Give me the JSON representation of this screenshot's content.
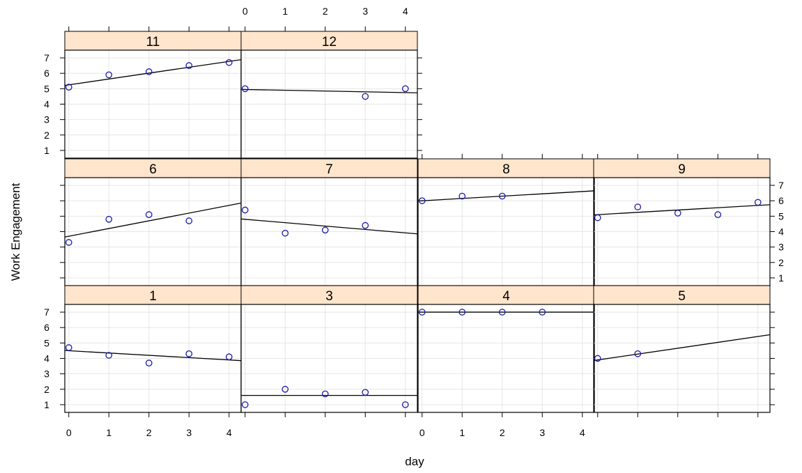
{
  "chart_data": {
    "type": "scatter",
    "xlabel": "day",
    "ylabel": "Work Engagement",
    "xlim": [
      -0.1,
      4.3
    ],
    "ylim": [
      0.5,
      7.5
    ],
    "x_ticks": [
      0,
      1,
      2,
      3,
      4
    ],
    "y_ticks": [
      1,
      2,
      3,
      4,
      5,
      6,
      7
    ],
    "grid": true,
    "strip_color": "#ffe5cc",
    "point_color": "#1a1aa8",
    "line_color": "#000000",
    "grid_color": "#e6e6e6",
    "panels": [
      {
        "label": "11",
        "row": 0,
        "col": 0,
        "points": [
          [
            0,
            5.1
          ],
          [
            1,
            5.9
          ],
          [
            2,
            6.1
          ],
          [
            3,
            6.5
          ],
          [
            4,
            6.7
          ]
        ],
        "fit": [
          5.25,
          0.38
        ]
      },
      {
        "label": "12",
        "row": 0,
        "col": 1,
        "points": [
          [
            0,
            5.0
          ],
          [
            3,
            4.5
          ],
          [
            4,
            5.0
          ]
        ],
        "fit": [
          4.95,
          -0.05
        ]
      },
      {
        "label": "6",
        "row": 1,
        "col": 0,
        "points": [
          [
            0,
            3.3
          ],
          [
            1,
            4.8
          ],
          [
            2,
            5.1
          ],
          [
            3,
            4.7
          ]
        ],
        "fit": [
          3.7,
          0.5
        ]
      },
      {
        "label": "7",
        "row": 1,
        "col": 1,
        "points": [
          [
            0,
            5.4
          ],
          [
            1,
            3.9
          ],
          [
            2,
            4.1
          ],
          [
            3,
            4.4
          ]
        ],
        "fit": [
          4.8,
          -0.22
        ]
      },
      {
        "label": "8",
        "row": 1,
        "col": 2,
        "points": [
          [
            0,
            6.0
          ],
          [
            1,
            6.3
          ],
          [
            2,
            6.3
          ]
        ],
        "fit": [
          6.0,
          0.15
        ]
      },
      {
        "label": "9",
        "row": 1,
        "col": 3,
        "points": [
          [
            0,
            4.9
          ],
          [
            1,
            5.6
          ],
          [
            2,
            5.2
          ],
          [
            3,
            5.1
          ],
          [
            4,
            5.9
          ]
        ],
        "fit": [
          5.1,
          0.15
        ]
      },
      {
        "label": "1",
        "row": 2,
        "col": 0,
        "points": [
          [
            0,
            4.7
          ],
          [
            1,
            4.2
          ],
          [
            2,
            3.7
          ],
          [
            3,
            4.3
          ],
          [
            4,
            4.1
          ]
        ],
        "fit": [
          4.5,
          -0.15
        ]
      },
      {
        "label": "3",
        "row": 2,
        "col": 1,
        "points": [
          [
            0,
            1.0
          ],
          [
            1,
            2.0
          ],
          [
            2,
            1.7
          ],
          [
            3,
            1.8
          ],
          [
            4,
            1.0
          ]
        ],
        "fit": [
          1.6,
          0.0
        ]
      },
      {
        "label": "4",
        "row": 2,
        "col": 2,
        "points": [
          [
            0,
            7.0
          ],
          [
            1,
            7.0
          ],
          [
            2,
            7.0
          ],
          [
            3,
            7.0
          ]
        ],
        "fit": [
          7.0,
          0.0
        ]
      },
      {
        "label": "5",
        "row": 2,
        "col": 3,
        "points": [
          [
            0,
            4.0
          ],
          [
            1,
            4.3
          ]
        ],
        "fit": [
          3.9,
          0.38
        ]
      }
    ]
  }
}
